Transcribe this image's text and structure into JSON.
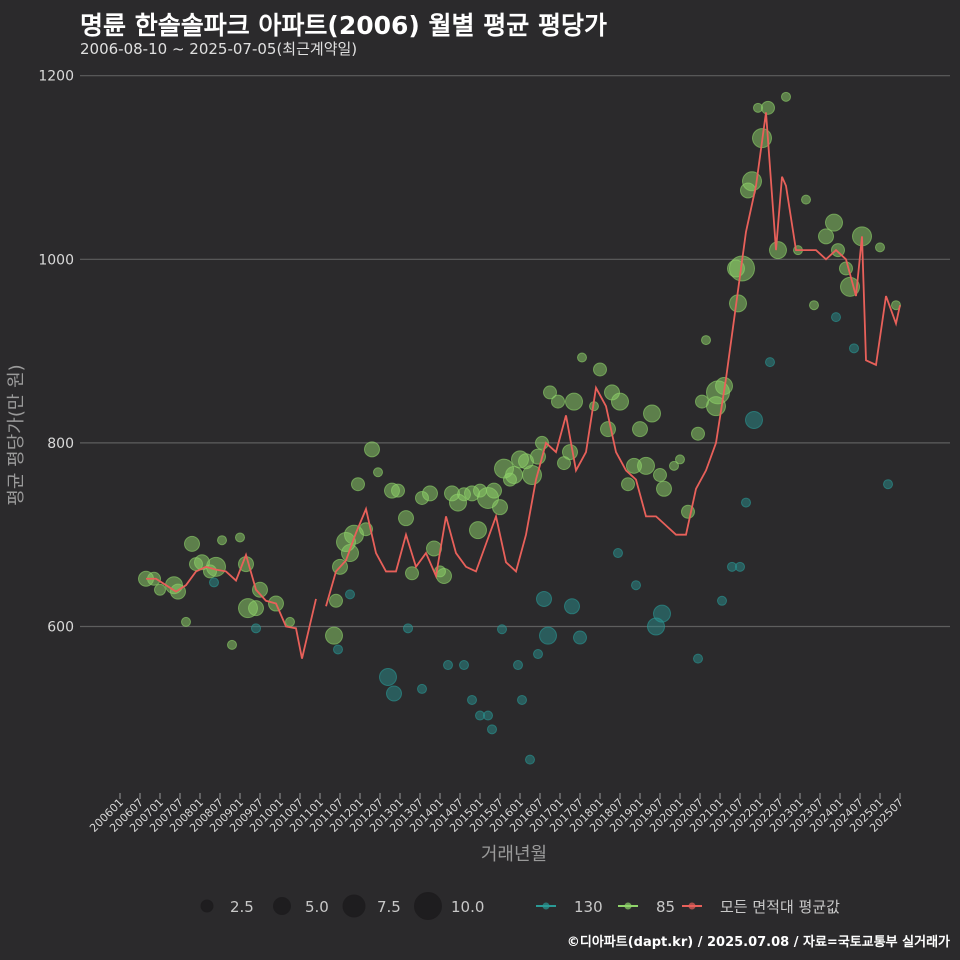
{
  "header": {
    "title": "명륜 한솔솔파크 아파트(2006) 월별 평균 평당가",
    "subtitle": "2006-08-10 ~ 2025-07-05(최근계약일)"
  },
  "footer": {
    "credit": "©디아파트(dapt.kr) / 2025.07.08 / 자료=국토교통부 실거래가"
  },
  "colors": {
    "background": "#2b2a2c",
    "grid": "#5e5e5e",
    "s130": "#2a9a96",
    "s85": "#8fd46a",
    "avg": "#e8605a"
  },
  "chart_data": {
    "type": "line",
    "title": "명륜 한솔솔파크 아파트(2006) 월별 평균 평당가",
    "xlabel": "거래년월",
    "ylabel": "평균 평당가(만 원)",
    "ylim": [
      420,
      1200
    ],
    "yticks": [
      600,
      800,
      1000,
      1200
    ],
    "xticks": [
      "200601",
      "200607",
      "200701",
      "200707",
      "200801",
      "200807",
      "200901",
      "200907",
      "201001",
      "201007",
      "201101",
      "201107",
      "201201",
      "201207",
      "201301",
      "201307",
      "201401",
      "201407",
      "201501",
      "201507",
      "201601",
      "201607",
      "201701",
      "201707",
      "201801",
      "201807",
      "201901",
      "201907",
      "202001",
      "202007",
      "202101",
      "202107",
      "202201",
      "202207",
      "202301",
      "202307",
      "202401",
      "202407",
      "202501",
      "202507"
    ],
    "size_legend": {
      "labels": [
        "2.5",
        "5.0",
        "7.5",
        "10.0"
      ],
      "values": [
        2.5,
        5.0,
        7.5,
        10.0
      ]
    },
    "color_legend": [
      {
        "key": "s130",
        "label": "130"
      },
      {
        "key": "s85",
        "label": "85"
      },
      {
        "key": "avg",
        "label": "모든 면적대 평균값"
      }
    ],
    "avg_series": {
      "name": "모든 면적대 평균값",
      "x": [
        2006.65,
        2006.9,
        2007.15,
        2007.4,
        2007.65,
        2007.9,
        2008.15,
        2008.4,
        2008.65,
        2008.9,
        2009.15,
        2009.4,
        2009.65,
        2009.9,
        2010.15,
        2010.4,
        2010.55,
        2010.9,
        2011.15,
        2011.4,
        2011.65,
        2011.9,
        2012.15,
        2012.4,
        2012.65,
        2012.9,
        2013.15,
        2013.4,
        2013.65,
        2013.9,
        2014.15,
        2014.4,
        2014.65,
        2014.9,
        2015.15,
        2015.4,
        2015.65,
        2015.9,
        2016.15,
        2016.4,
        2016.65,
        2016.9,
        2017.15,
        2017.4,
        2017.65,
        2017.9,
        2018.15,
        2018.4,
        2018.65,
        2018.9,
        2019.15,
        2019.4,
        2019.65,
        2019.9,
        2020.15,
        2020.4,
        2020.65,
        2020.9,
        2021.15,
        2021.4,
        2021.65,
        2021.9,
        2022.15,
        2022.4,
        2022.55,
        2022.65,
        2022.9,
        2023.15,
        2023.4,
        2023.65,
        2023.9,
        2024.15,
        2024.4,
        2024.55,
        2024.65,
        2024.9,
        2025.15,
        2025.4,
        2025.5
      ],
      "values": [
        652,
        652,
        645,
        638,
        645,
        660,
        665,
        662,
        660,
        650,
        678,
        640,
        628,
        625,
        600,
        598,
        565,
        630,
        622,
        660,
        672,
        702,
        728,
        680,
        660,
        660,
        700,
        665,
        680,
        655,
        720,
        680,
        665,
        660,
        690,
        720,
        670,
        660,
        700,
        760,
        800,
        790,
        830,
        770,
        790,
        860,
        840,
        790,
        770,
        760,
        720,
        720,
        710,
        700,
        700,
        750,
        770,
        800,
        870,
        950,
        1030,
        1080,
        1160,
        1010,
        1090,
        1080,
        1010,
        1010,
        1010,
        1000,
        1010,
        1000,
        960,
        1025,
        890,
        885,
        960,
        930,
        950
      ]
    },
    "segment_breaks": [
      2011.0
    ],
    "s85_points": [
      [
        2006.65,
        652,
        4
      ],
      [
        2006.85,
        652,
        3
      ],
      [
        2007.0,
        640,
        2
      ],
      [
        2007.35,
        645,
        5
      ],
      [
        2007.45,
        638,
        4
      ],
      [
        2007.65,
        605,
        1
      ],
      [
        2007.8,
        690,
        4
      ],
      [
        2007.9,
        668,
        3
      ],
      [
        2008.05,
        670,
        4
      ],
      [
        2008.25,
        660,
        3
      ],
      [
        2008.4,
        665,
        6
      ],
      [
        2008.55,
        694,
        1
      ],
      [
        2008.8,
        580,
        1
      ],
      [
        2009.0,
        697,
        1
      ],
      [
        2009.15,
        668,
        4
      ],
      [
        2009.2,
        620,
        6
      ],
      [
        2009.4,
        620,
        4
      ],
      [
        2009.5,
        640,
        4
      ],
      [
        2009.9,
        625,
        4
      ],
      [
        2010.25,
        605,
        1
      ],
      [
        2011.35,
        590,
        5
      ],
      [
        2011.4,
        628,
        3
      ],
      [
        2011.5,
        665,
        4
      ],
      [
        2011.65,
        692,
        6
      ],
      [
        2011.75,
        680,
        5
      ],
      [
        2011.85,
        700,
        6
      ],
      [
        2011.95,
        755,
        3
      ],
      [
        2012.15,
        706,
        3
      ],
      [
        2012.3,
        793,
        4
      ],
      [
        2012.45,
        768,
        1
      ],
      [
        2012.8,
        748,
        4
      ],
      [
        2012.95,
        748,
        3
      ],
      [
        2013.15,
        718,
        4
      ],
      [
        2013.3,
        658,
        3
      ],
      [
        2013.55,
        740,
        3
      ],
      [
        2013.75,
        745,
        4
      ],
      [
        2013.85,
        685,
        4
      ],
      [
        2014.0,
        660,
        2
      ],
      [
        2014.1,
        655,
        4
      ],
      [
        2014.3,
        745,
        4
      ],
      [
        2014.45,
        735,
        5
      ],
      [
        2014.6,
        744,
        3
      ],
      [
        2014.8,
        745,
        4
      ],
      [
        2014.95,
        705,
        5
      ],
      [
        2015.0,
        748,
        3
      ],
      [
        2015.2,
        740,
        7
      ],
      [
        2015.35,
        748,
        4
      ],
      [
        2015.5,
        730,
        4
      ],
      [
        2015.6,
        772,
        6
      ],
      [
        2015.75,
        760,
        3
      ],
      [
        2015.85,
        765,
        5
      ],
      [
        2016.0,
        782,
        5
      ],
      [
        2016.15,
        780,
        4
      ],
      [
        2016.3,
        765,
        6
      ],
      [
        2016.45,
        785,
        4
      ],
      [
        2016.55,
        800,
        3
      ],
      [
        2016.75,
        855,
        3
      ],
      [
        2016.95,
        845,
        3
      ],
      [
        2017.1,
        778,
        3
      ],
      [
        2017.25,
        790,
        4
      ],
      [
        2017.35,
        845,
        5
      ],
      [
        2017.55,
        893,
        1
      ],
      [
        2017.85,
        840,
        1
      ],
      [
        2018.0,
        880,
        3
      ],
      [
        2018.2,
        815,
        4
      ],
      [
        2018.3,
        855,
        4
      ],
      [
        2018.5,
        845,
        5
      ],
      [
        2018.7,
        755,
        3
      ],
      [
        2018.85,
        775,
        4
      ],
      [
        2019.0,
        815,
        4
      ],
      [
        2019.15,
        775,
        5
      ],
      [
        2019.3,
        832,
        5
      ],
      [
        2019.5,
        765,
        3
      ],
      [
        2019.6,
        750,
        4
      ],
      [
        2019.85,
        775,
        1
      ],
      [
        2020.0,
        782,
        1
      ],
      [
        2020.2,
        725,
        3
      ],
      [
        2020.45,
        810,
        3
      ],
      [
        2020.55,
        845,
        3
      ],
      [
        2020.65,
        912,
        1
      ],
      [
        2020.9,
        840,
        6
      ],
      [
        2020.95,
        855,
        8
      ],
      [
        2021.1,
        862,
        5
      ],
      [
        2021.4,
        990,
        5
      ],
      [
        2021.45,
        952,
        5
      ],
      [
        2021.55,
        990,
        9
      ],
      [
        2021.7,
        1075,
        4
      ],
      [
        2021.8,
        1085,
        6
      ],
      [
        2021.95,
        1165,
        1
      ],
      [
        2022.05,
        1132,
        6
      ],
      [
        2022.2,
        1165,
        3
      ],
      [
        2022.45,
        1010,
        5
      ],
      [
        2022.65,
        1177,
        1
      ],
      [
        2022.95,
        1010,
        1
      ],
      [
        2023.15,
        1065,
        1
      ],
      [
        2023.35,
        950,
        1
      ],
      [
        2023.65,
        1025,
        4
      ],
      [
        2023.85,
        1040,
        5
      ],
      [
        2023.95,
        1010,
        3
      ],
      [
        2024.15,
        990,
        3
      ],
      [
        2024.25,
        970,
        6
      ],
      [
        2024.55,
        1025,
        6
      ],
      [
        2025.0,
        1013,
        1
      ],
      [
        2025.4,
        950,
        1
      ]
    ],
    "s130_points": [
      [
        2008.35,
        648,
        1
      ],
      [
        2009.4,
        598,
        1
      ],
      [
        2011.45,
        575,
        1
      ],
      [
        2011.75,
        635,
        1
      ],
      [
        2012.7,
        545,
        5
      ],
      [
        2012.85,
        527,
        4
      ],
      [
        2013.2,
        598,
        1
      ],
      [
        2013.55,
        532,
        1
      ],
      [
        2014.2,
        558,
        1
      ],
      [
        2014.6,
        558,
        1
      ],
      [
        2014.8,
        520,
        1
      ],
      [
        2015.0,
        503,
        1
      ],
      [
        2015.2,
        503,
        1
      ],
      [
        2015.3,
        488,
        1
      ],
      [
        2015.55,
        597,
        1
      ],
      [
        2015.95,
        558,
        1
      ],
      [
        2016.05,
        520,
        1
      ],
      [
        2016.25,
        455,
        1
      ],
      [
        2016.45,
        570,
        1
      ],
      [
        2016.6,
        630,
        4
      ],
      [
        2016.7,
        590,
        5
      ],
      [
        2017.3,
        622,
        4
      ],
      [
        2017.5,
        588,
        3
      ],
      [
        2018.45,
        680,
        1
      ],
      [
        2018.9,
        645,
        1
      ],
      [
        2019.4,
        600,
        5
      ],
      [
        2019.55,
        614,
        5
      ],
      [
        2020.45,
        565,
        1
      ],
      [
        2021.05,
        628,
        1
      ],
      [
        2021.3,
        665,
        1
      ],
      [
        2021.5,
        665,
        1
      ],
      [
        2021.65,
        735,
        1
      ],
      [
        2021.85,
        825,
        5
      ],
      [
        2022.25,
        888,
        1
      ],
      [
        2023.9,
        937,
        1
      ],
      [
        2024.35,
        903,
        1
      ],
      [
        2025.2,
        755,
        1
      ]
    ]
  }
}
